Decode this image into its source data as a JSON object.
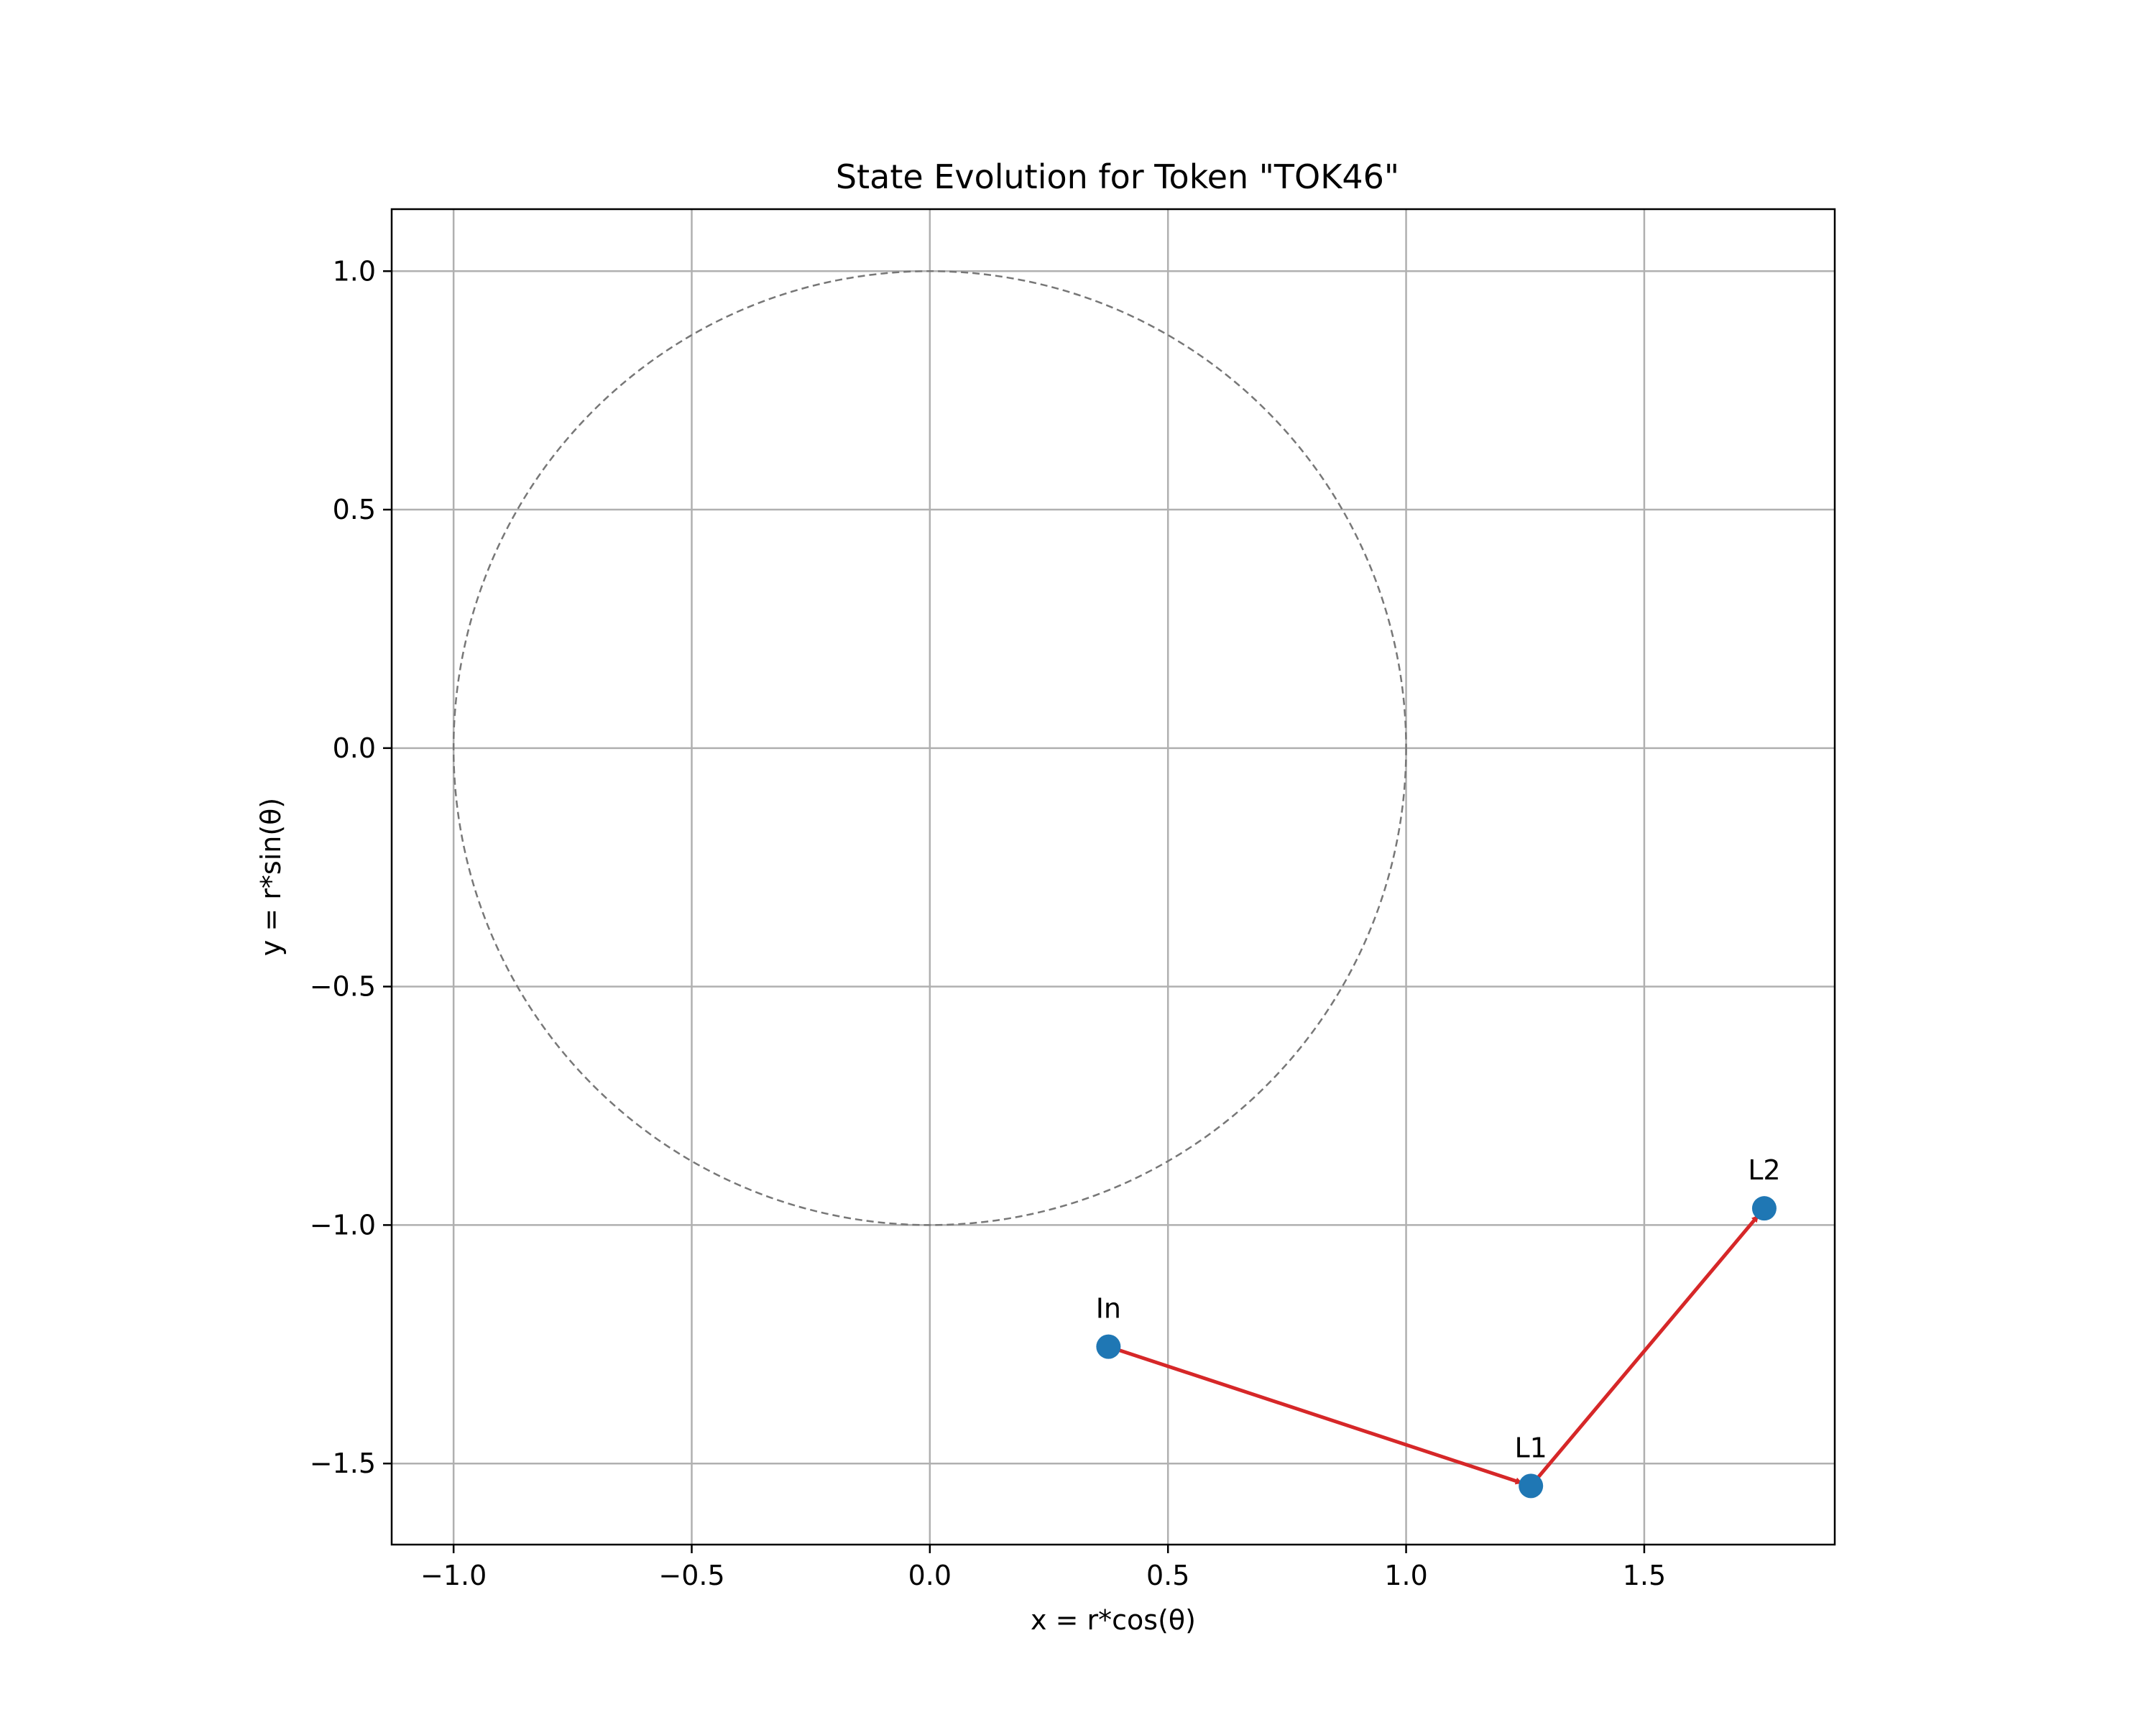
{
  "chart_data": {
    "type": "scatter",
    "title": "State Evolution for Token \"TOK46\"",
    "xlabel": "x = r*cos(θ)",
    "ylabel": "y = r*sin(θ)",
    "xlim": [
      -1.13,
      1.9
    ],
    "ylim": [
      -1.67,
      1.13
    ],
    "xticks": [
      -1.0,
      -0.5,
      0.0,
      0.5,
      1.0,
      1.5
    ],
    "yticks": [
      -1.5,
      -1.0,
      -0.5,
      0.0,
      0.5,
      1.0
    ],
    "xtick_labels": [
      "−1.0",
      "−0.5",
      "0.0",
      "0.5",
      "1.0",
      "1.5"
    ],
    "ytick_labels": [
      "−1.5",
      "−1.0",
      "−0.5",
      "0.0",
      "0.5",
      "1.0"
    ],
    "grid": true,
    "reference_circle": {
      "center": [
        0,
        0
      ],
      "radius": 1.0,
      "style": "dashed",
      "color": "#777777"
    },
    "points": [
      {
        "label": "In",
        "x": 0.375,
        "y": -1.255
      },
      {
        "label": "L1",
        "x": 1.262,
        "y": -1.547
      },
      {
        "label": "L2",
        "x": 1.752,
        "y": -0.965
      }
    ],
    "arrows": [
      {
        "from": "In",
        "to": "L1"
      },
      {
        "from": "L1",
        "to": "L2"
      }
    ],
    "colors": {
      "points": "#1f77b4",
      "arrows": "#d62728",
      "grid": "#b0b0b0",
      "circle": "#777777"
    }
  }
}
